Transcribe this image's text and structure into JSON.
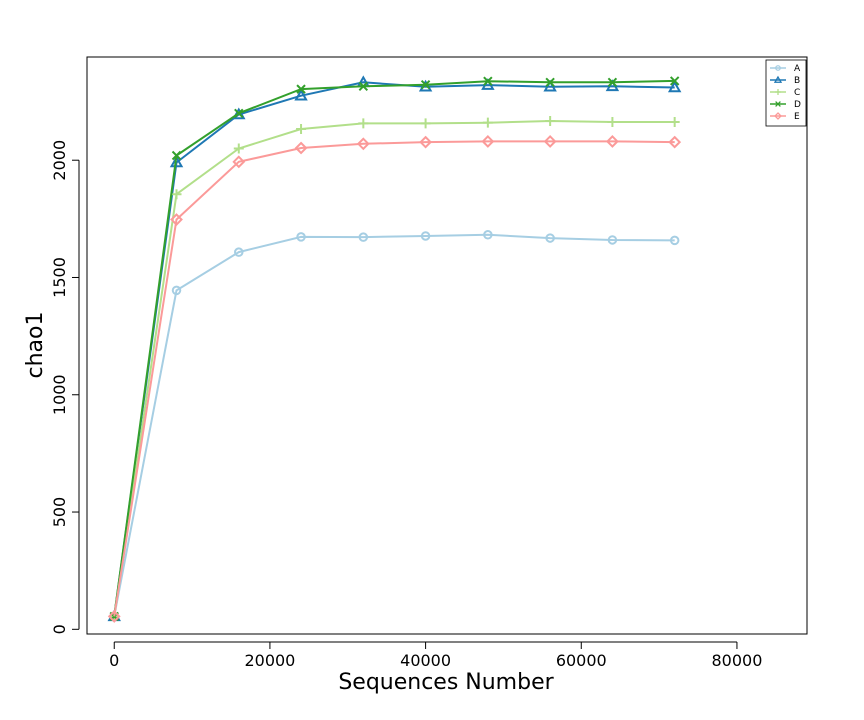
{
  "chart_data": {
    "type": "line",
    "xlabel": "Sequences Number",
    "ylabel": "chao1",
    "xlim": [
      -3500,
      89000
    ],
    "ylim": [
      -20,
      2440
    ],
    "x_ticks": [
      0,
      20000,
      40000,
      60000,
      80000
    ],
    "x_tick_labels": [
      "0",
      "20000",
      "40000",
      "60000",
      "80000"
    ],
    "y_ticks": [
      0,
      500,
      1000,
      1500,
      2000
    ],
    "y_tick_labels": [
      "0",
      "500",
      "1000",
      "1500",
      "2000"
    ],
    "grid": false,
    "legend_position": "top-right",
    "x": [
      0,
      8000,
      16000,
      24000,
      32000,
      40000,
      48000,
      56000,
      64000,
      72000
    ],
    "series": [
      {
        "name": "A",
        "color": "#a6cee3",
        "marker": "circle",
        "values": [
          55,
          1445,
          1608,
          1673,
          1672,
          1677,
          1682,
          1668,
          1660,
          1658
        ]
      },
      {
        "name": "B",
        "color": "#1f78b4",
        "marker": "triangle",
        "values": [
          55,
          1990,
          2195,
          2275,
          2332,
          2313,
          2320,
          2313,
          2315,
          2310
        ]
      },
      {
        "name": "C",
        "color": "#b2df8a",
        "marker": "plus",
        "values": [
          55,
          1855,
          2050,
          2133,
          2157,
          2157,
          2160,
          2167,
          2163,
          2163
        ]
      },
      {
        "name": "D",
        "color": "#33a02c",
        "marker": "x",
        "values": [
          55,
          2020,
          2200,
          2303,
          2315,
          2322,
          2337,
          2332,
          2332,
          2338
        ]
      },
      {
        "name": "E",
        "color": "#fb9a99",
        "marker": "diamond",
        "values": [
          55,
          1747,
          1993,
          2052,
          2070,
          2077,
          2080,
          2080,
          2080,
          2077
        ]
      }
    ]
  }
}
